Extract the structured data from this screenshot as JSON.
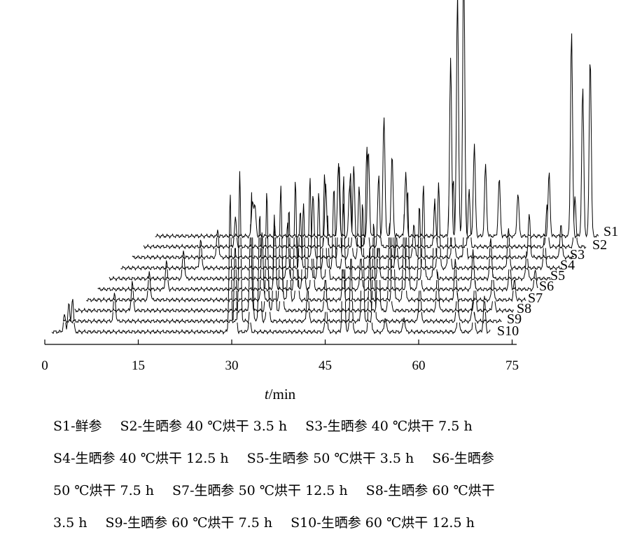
{
  "chart_data": {
    "type": "line",
    "subtype": "stacked-3d-chromatograms",
    "xlabel_italic": "t",
    "xlabel_rest": "/min",
    "xticks": [
      0,
      15,
      30,
      45,
      60,
      75
    ],
    "xlim": [
      0,
      75
    ],
    "grid": false,
    "legend": "series labels at the right end of each trace",
    "series": [
      {
        "name": "S1",
        "peaks": [
          [
            15.4,
            0.12
          ],
          [
            15.8,
            0.1
          ],
          [
            29.2,
            0.25
          ],
          [
            31,
            0.18
          ],
          [
            34,
            0.3
          ],
          [
            36.5,
            0.42
          ],
          [
            37.8,
            0.28
          ],
          [
            40,
            0.22
          ],
          [
            47.2,
            0.62
          ],
          [
            48.3,
            0.85
          ],
          [
            49.3,
            1.0
          ],
          [
            51,
            0.32
          ],
          [
            52.8,
            0.25
          ],
          [
            55,
            0.2
          ],
          [
            58,
            0.15
          ],
          [
            63,
            0.22
          ],
          [
            66.6,
            0.72
          ],
          [
            68.4,
            0.52
          ],
          [
            69.6,
            0.63
          ],
          [
            72,
            0.35
          ],
          [
            74.2,
            0.32
          ],
          [
            84.5,
            0.14
          ]
        ]
      },
      {
        "name": "S2",
        "peaks": [
          [
            14.5,
            0.1
          ],
          [
            29,
            0.22
          ],
          [
            33.5,
            0.28
          ],
          [
            35.6,
            0.35
          ],
          [
            37.5,
            0.25
          ],
          [
            46.5,
            0.15
          ],
          [
            52,
            0.2
          ],
          [
            64.5,
            0.15
          ],
          [
            69,
            0.18
          ],
          [
            71.5,
            0.12
          ],
          [
            79,
            0.08
          ]
        ]
      },
      {
        "name": "S3",
        "peaks": [
          [
            13.5,
            0.1
          ],
          [
            28.8,
            0.22
          ],
          [
            33,
            0.32
          ],
          [
            34.8,
            0.3
          ],
          [
            36.2,
            0.25
          ],
          [
            45,
            0.12
          ],
          [
            51.3,
            0.28
          ],
          [
            53.2,
            0.3
          ],
          [
            63.5,
            0.15
          ],
          [
            68.6,
            0.12
          ],
          [
            76,
            0.08
          ]
        ]
      },
      {
        "name": "S4",
        "peaks": [
          [
            12.6,
            0.1
          ],
          [
            28.6,
            0.2
          ],
          [
            32.5,
            0.33
          ],
          [
            34,
            0.28
          ],
          [
            35.5,
            0.22
          ],
          [
            44,
            0.12
          ],
          [
            50.8,
            0.3
          ],
          [
            52.5,
            0.26
          ],
          [
            62,
            0.14
          ],
          [
            67.8,
            0.12
          ],
          [
            73,
            0.08
          ]
        ]
      },
      {
        "name": "S5",
        "peaks": [
          [
            11.7,
            0.1
          ],
          [
            28.4,
            0.2
          ],
          [
            32,
            0.35
          ],
          [
            33.4,
            0.3
          ],
          [
            34.8,
            0.22
          ],
          [
            43,
            0.12
          ],
          [
            50.2,
            0.33
          ],
          [
            52,
            0.28
          ],
          [
            61,
            0.14
          ],
          [
            66.8,
            0.1
          ],
          [
            71.5,
            0.07
          ]
        ]
      },
      {
        "name": "S6",
        "peaks": [
          [
            10.8,
            0.1
          ],
          [
            28.2,
            0.22
          ],
          [
            31.5,
            0.38
          ],
          [
            32.8,
            0.3
          ],
          [
            34.2,
            0.22
          ],
          [
            42,
            0.12
          ],
          [
            49.5,
            0.35
          ],
          [
            51.4,
            0.3
          ],
          [
            60,
            0.14
          ],
          [
            65.9,
            0.1
          ],
          [
            70,
            0.07
          ]
        ]
      },
      {
        "name": "S7",
        "peaks": [
          [
            9.9,
            0.1
          ],
          [
            28,
            0.24
          ],
          [
            31,
            0.4
          ],
          [
            32.3,
            0.32
          ],
          [
            33.6,
            0.22
          ],
          [
            41,
            0.12
          ],
          [
            49,
            0.36
          ],
          [
            50.8,
            0.3
          ],
          [
            59,
            0.14
          ],
          [
            65,
            0.1
          ],
          [
            68.5,
            0.07
          ]
        ]
      },
      {
        "name": "S8",
        "peaks": [
          [
            9,
            0.1
          ],
          [
            28,
            0.3
          ],
          [
            30.6,
            0.42
          ],
          [
            31.8,
            0.33
          ],
          [
            33,
            0.22
          ],
          [
            40,
            0.12
          ],
          [
            48.5,
            0.38
          ],
          [
            50.3,
            0.32
          ],
          [
            58,
            0.14
          ],
          [
            64,
            0.1
          ],
          [
            67,
            0.07
          ]
        ]
      },
      {
        "name": "S9",
        "peaks": [
          [
            8,
            0.1
          ],
          [
            28.1,
            0.52
          ],
          [
            30,
            0.45
          ],
          [
            31.3,
            0.38
          ],
          [
            32.6,
            0.22
          ],
          [
            39,
            0.12
          ],
          [
            47.8,
            0.42
          ],
          [
            49.6,
            0.35
          ],
          [
            57,
            0.14
          ],
          [
            63,
            0.1
          ],
          [
            65.5,
            0.07
          ]
        ]
      },
      {
        "name": "S10",
        "peaks": [
          [
            1.8,
            0.06
          ],
          [
            2.5,
            0.1
          ],
          [
            3.1,
            0.12
          ],
          [
            28.4,
            0.48
          ],
          [
            29.2,
            0.32
          ],
          [
            31.5,
            0.05
          ],
          [
            43.8,
            0.1
          ],
          [
            46.6,
            0.55
          ],
          [
            47.8,
            0.28
          ],
          [
            50.8,
            0.3
          ],
          [
            53.3,
            0.05
          ],
          [
            56.3,
            0.05
          ],
          [
            65,
            0.07
          ],
          [
            67.5,
            0.08
          ],
          [
            69.2,
            0.12
          ]
        ]
      }
    ]
  },
  "caption": [
    [
      "S1-鲜参",
      "S2-生晒参 40 ℃烘干 3.5 h",
      "S3-生晒参 40 ℃烘干 7.5 h"
    ],
    [
      "S4-生晒参 40 ℃烘干 12.5 h",
      "S5-生晒参 50 ℃烘干 3.5 h",
      "S6-生晒参"
    ],
    [
      "50 ℃烘干 7.5 h",
      "S7-生晒参 50 ℃烘干 12.5 h",
      "S8-生晒参 60 ℃烘干"
    ],
    [
      "3.5 h",
      "S9-生晒参 60 ℃烘干 7.5 h",
      "S10-生晒参 60 ℃烘干 12.5 h"
    ]
  ]
}
